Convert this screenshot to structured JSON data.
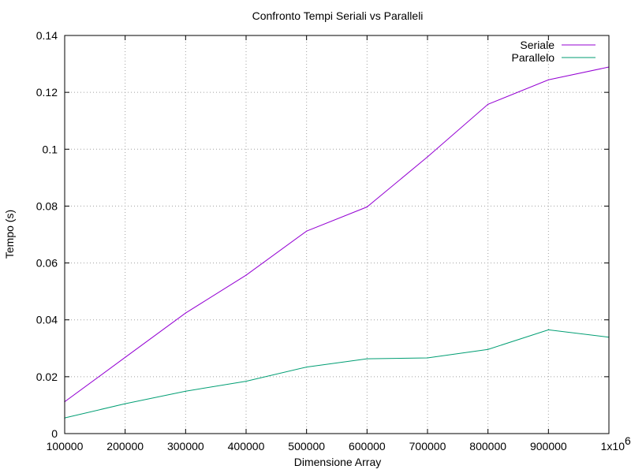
{
  "chart_data": {
    "type": "line",
    "title": "Confronto Tempi Seriali vs Paralleli",
    "xlabel": "Dimensione Array",
    "ylabel": "Tempo (s)",
    "x": [
      100000,
      200000,
      300000,
      400000,
      500000,
      600000,
      700000,
      800000,
      900000,
      1000000
    ],
    "xlim": [
      100000,
      1000000
    ],
    "ylim": [
      0,
      0.14
    ],
    "x_ticks": [
      100000,
      200000,
      300000,
      400000,
      500000,
      600000,
      700000,
      800000,
      900000,
      1000000
    ],
    "x_tick_labels": [
      "100000",
      "200000",
      "300000",
      "400000",
      "500000",
      "600000",
      "700000",
      "800000",
      "900000",
      "1x10"
    ],
    "x_last_tick_exponent": "6",
    "y_ticks": [
      0,
      0.02,
      0.04,
      0.06,
      0.08,
      0.1,
      0.12,
      0.14
    ],
    "y_tick_labels": [
      "0",
      "0.02",
      "0.04",
      "0.06",
      "0.08",
      "0.1",
      "0.12",
      "0.14"
    ],
    "grid": true,
    "legend_position": "top-right",
    "series": [
      {
        "name": "Seriale",
        "color": "#9400d3",
        "values": [
          0.0112,
          0.0268,
          0.0424,
          0.0557,
          0.0712,
          0.0797,
          0.0973,
          0.1158,
          0.1244,
          0.1289
        ]
      },
      {
        "name": "Parallelo",
        "color": "#009e73",
        "values": [
          0.0055,
          0.0105,
          0.0149,
          0.0184,
          0.0234,
          0.0263,
          0.0266,
          0.0296,
          0.0365,
          0.0339
        ]
      }
    ]
  }
}
